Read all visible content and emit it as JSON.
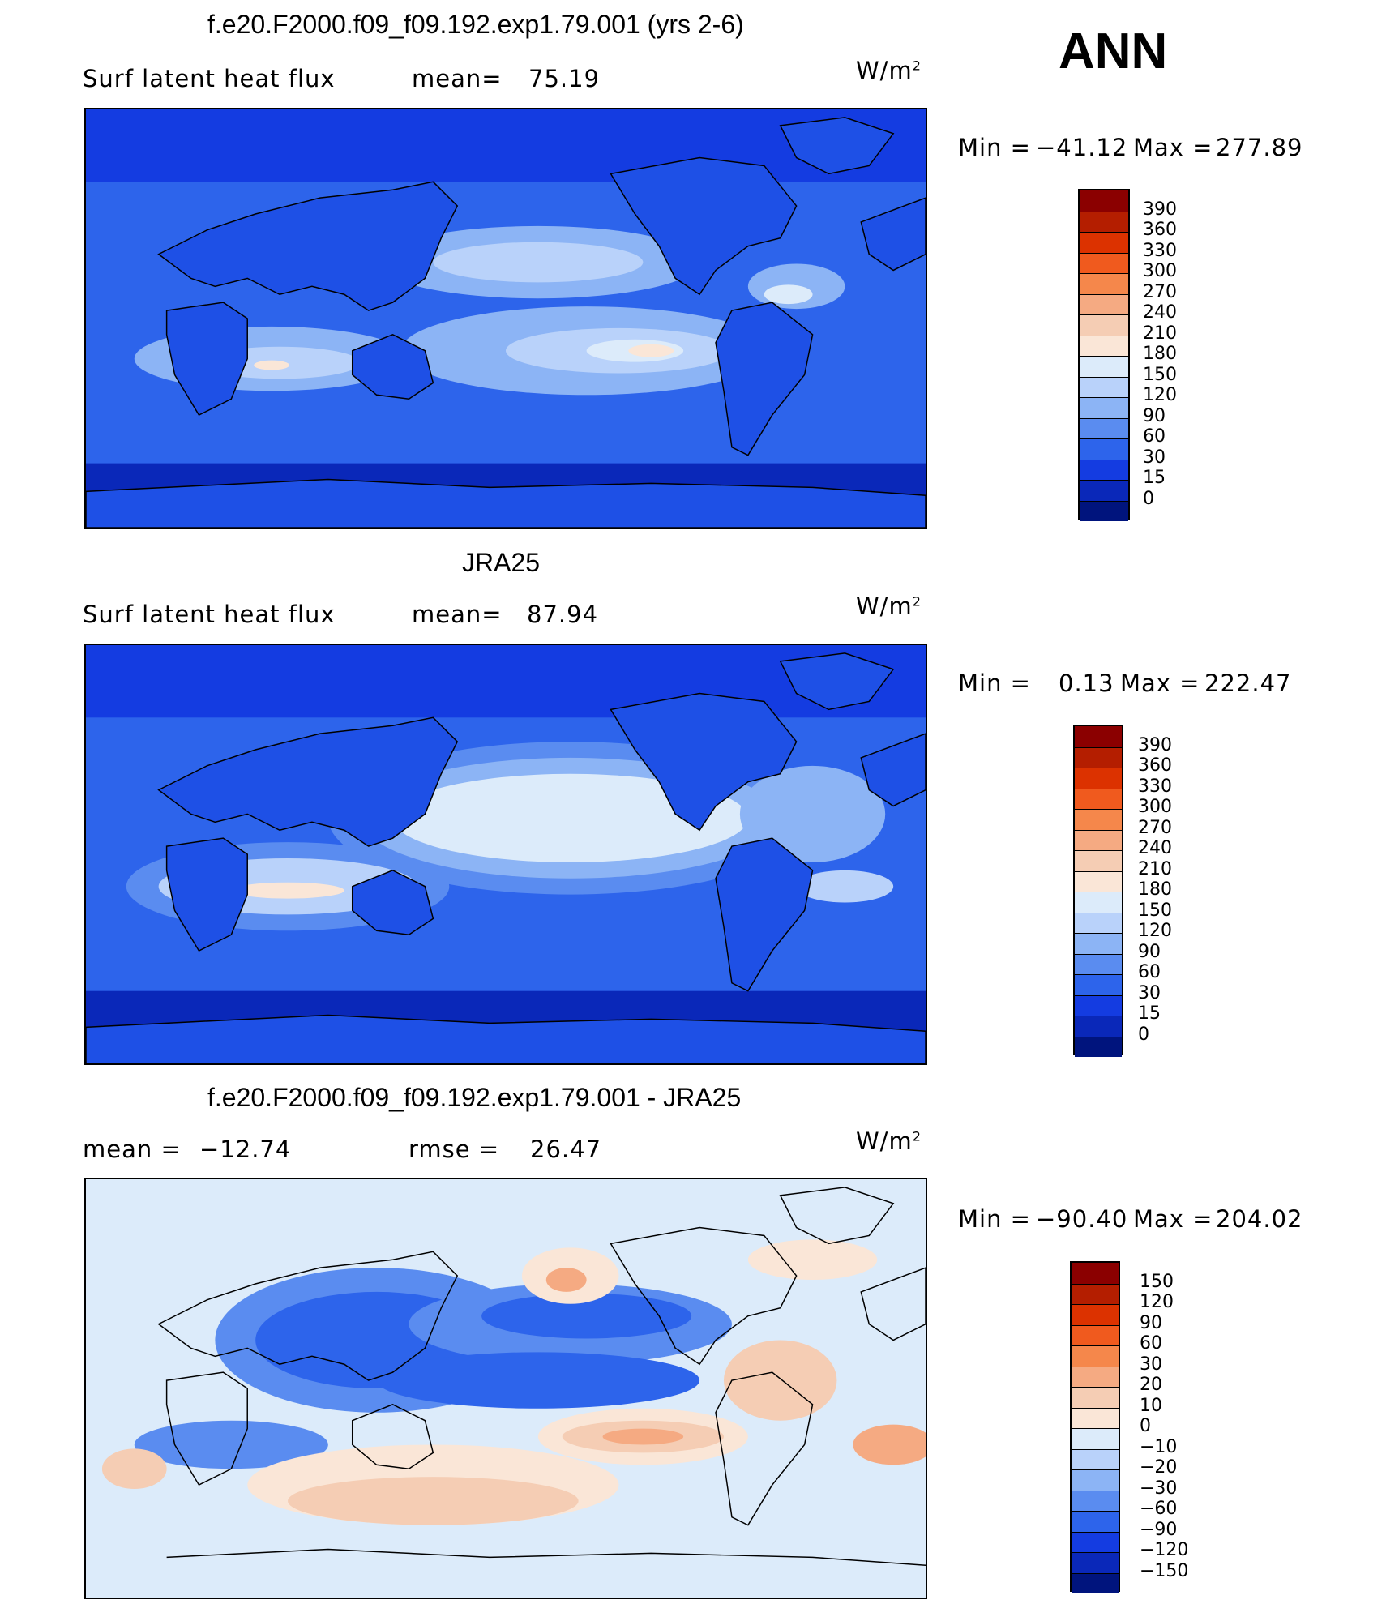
{
  "season": "ANN",
  "units": "W/m",
  "units_exp": "2",
  "panels": [
    {
      "title": "f.e20.F2000.f09_f09.192.exp1.79.001 (yrs 2-6)",
      "variable": "Surf  latent  heat  flux",
      "stat1_label": "mean=",
      "stat1_value": "75.19",
      "stat2_label": "",
      "stat2_value": "",
      "min_label": "Min  =",
      "min_value": "−41.12",
      "max_label": "Max  =",
      "max_value": "277.89",
      "colorbar": {
        "levels": [
          "390",
          "360",
          "330",
          "300",
          "270",
          "240",
          "210",
          "180",
          "150",
          "120",
          "90",
          "60",
          "30",
          "15",
          "0"
        ],
        "colors": [
          "#8b0000",
          "#b41e00",
          "#dc3200",
          "#f05a1e",
          "#f5874b",
          "#f5aa82",
          "#f5cdb4",
          "#fae6d7",
          "#dcebfa",
          "#b9d2fa",
          "#8cb4f5",
          "#5a8cf0",
          "#2d64eb",
          "#143ce1",
          "#0a28b9",
          "#00147d"
        ]
      }
    },
    {
      "title": "JRA25",
      "variable": "Surf  latent  heat  flux",
      "stat1_label": "mean=",
      "stat1_value": "87.94",
      "stat2_label": "",
      "stat2_value": "",
      "min_label": "Min  =",
      "min_value": "0.13",
      "max_label": "Max  =",
      "max_value": "222.47",
      "colorbar": {
        "levels": [
          "390",
          "360",
          "330",
          "300",
          "270",
          "240",
          "210",
          "180",
          "150",
          "120",
          "90",
          "60",
          "30",
          "15",
          "0"
        ],
        "colors": [
          "#8b0000",
          "#b41e00",
          "#dc3200",
          "#f05a1e",
          "#f5874b",
          "#f5aa82",
          "#f5cdb4",
          "#fae6d7",
          "#dcebfa",
          "#b9d2fa",
          "#8cb4f5",
          "#5a8cf0",
          "#2d64eb",
          "#143ce1",
          "#0a28b9",
          "#00147d"
        ]
      }
    },
    {
      "title": "f.e20.F2000.f09_f09.192.exp1.79.001 - JRA25",
      "variable": "",
      "stat1_label": "mean  =",
      "stat1_value": "−12.74",
      "stat2_label": "rmse  =",
      "stat2_value": "26.47",
      "min_label": "Min  =",
      "min_value": "−90.40",
      "max_label": "Max  =",
      "max_value": "204.02",
      "colorbar": {
        "levels": [
          "150",
          "120",
          "90",
          "60",
          "30",
          "20",
          "10",
          "0",
          "−10",
          "−20",
          "−30",
          "−60",
          "−90",
          "−120",
          "−150"
        ],
        "colors": [
          "#8b0000",
          "#b41e00",
          "#dc3200",
          "#f05a1e",
          "#f5874b",
          "#f5aa82",
          "#f5cdb4",
          "#fae6d7",
          "#dcebfa",
          "#b9d2fa",
          "#8cb4f5",
          "#5a8cf0",
          "#2d64eb",
          "#143ce1",
          "#0a28b9",
          "#00147d"
        ]
      }
    }
  ]
}
